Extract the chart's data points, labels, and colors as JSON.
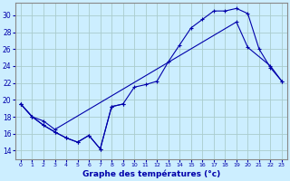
{
  "xlabel": "Graphe des températures (°c)",
  "bg_color": "#cceeff",
  "grid_color": "#aacccc",
  "line_color": "#0000aa",
  "xlim": [
    -0.5,
    23.5
  ],
  "ylim": [
    13,
    31.5
  ],
  "yticks": [
    14,
    16,
    18,
    20,
    22,
    24,
    26,
    28,
    30
  ],
  "xticks": [
    0,
    1,
    2,
    3,
    4,
    5,
    6,
    7,
    8,
    9,
    10,
    11,
    12,
    13,
    14,
    15,
    16,
    17,
    18,
    19,
    20,
    21,
    22,
    23
  ],
  "line1_x": [
    0,
    1,
    2,
    3,
    4,
    5,
    6,
    7,
    8,
    9
  ],
  "line1_y": [
    19.5,
    18.0,
    17.0,
    16.2,
    15.5,
    15.0,
    15.8,
    14.2,
    19.2,
    19.5
  ],
  "line2_x": [
    0,
    1,
    2,
    3,
    4,
    5,
    6,
    7,
    8,
    9,
    10,
    11,
    12,
    13,
    14,
    15,
    16,
    17,
    18,
    19,
    20,
    21,
    22,
    23
  ],
  "line2_y": [
    19.5,
    18.0,
    17.0,
    16.2,
    15.5,
    15.0,
    15.8,
    14.2,
    19.2,
    19.5,
    21.5,
    21.8,
    22.2,
    24.5,
    26.5,
    28.5,
    29.5,
    30.5,
    30.5,
    30.8,
    30.2,
    26.0,
    23.8,
    22.2
  ],
  "line3_x": [
    0,
    1,
    2,
    3,
    19,
    20,
    22,
    23
  ],
  "line3_y": [
    19.5,
    18.0,
    17.5,
    16.5,
    29.2,
    26.2,
    24.0,
    22.2
  ]
}
